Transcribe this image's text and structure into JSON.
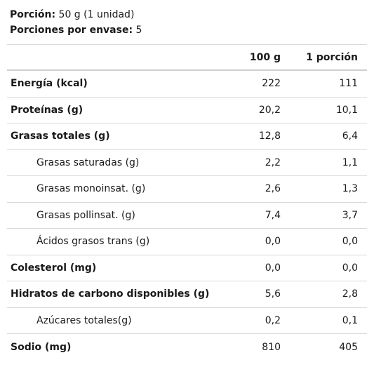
{
  "header": {
    "portion_label": "Porción:",
    "portion_value": "50 g (1 unidad)",
    "servings_label": "Porciones por envase:",
    "servings_value": "5"
  },
  "table": {
    "col_100g": "100 g",
    "col_portion": "1 porción",
    "rows": [
      {
        "name": "Energía (kcal)",
        "v100": "222",
        "vp": "111"
      },
      {
        "name": "Proteínas (g)",
        "v100": "20,2",
        "vp": "10,1"
      },
      {
        "name": "Grasas totales (g)",
        "v100": "12,8",
        "vp": "6,4"
      },
      {
        "name": "Grasas saturadas (g)",
        "v100": "2,2",
        "vp": "1,1"
      },
      {
        "name": "Grasas monoinsat. (g)",
        "v100": "2,6",
        "vp": "1,3"
      },
      {
        "name": "Grasas pollinsat. (g)",
        "v100": "7,4",
        "vp": "3,7"
      },
      {
        "name": "Ácidos grasos trans (g)",
        "v100": "0,0",
        "vp": "0,0"
      },
      {
        "name": "Colesterol (mg)",
        "v100": "0,0",
        "vp": "0,0"
      },
      {
        "name": "Hidratos de carbono disponibles (g)",
        "v100": "5,6",
        "vp": "2,8"
      },
      {
        "name": "Azúcares totales(g)",
        "v100": "0,2",
        "vp": "0,1"
      },
      {
        "name": "Sodio (mg)",
        "v100": "810",
        "vp": "405"
      }
    ]
  }
}
